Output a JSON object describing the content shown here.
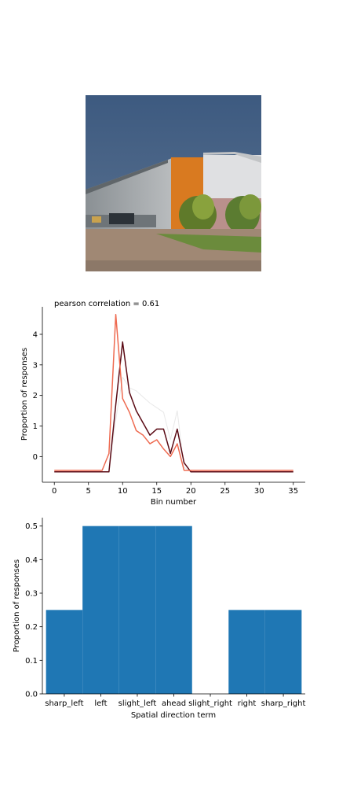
{
  "chart_data": [
    {
      "type": "line",
      "title": "pearson correlation = 0.61",
      "xlabel": "Bin number",
      "ylabel": "Proportion of responses",
      "xlim": [
        -1.75,
        36.75
      ],
      "ylim": [
        -0.84,
        4.9
      ],
      "xticks": [
        0,
        5,
        10,
        15,
        20,
        25,
        30,
        35
      ],
      "yticks": [
        0,
        1,
        2,
        3,
        4
      ],
      "x": [
        0,
        1,
        2,
        3,
        4,
        5,
        6,
        7,
        8,
        9,
        10,
        11,
        12,
        13,
        14,
        15,
        16,
        17,
        18,
        19,
        20,
        21,
        22,
        23,
        24,
        25,
        26,
        27,
        28,
        29,
        30,
        31,
        32,
        33,
        34,
        35
      ],
      "series": [
        {
          "color": "#ee6a50",
          "values": [
            -0.45,
            -0.45,
            -0.45,
            -0.45,
            -0.45,
            -0.45,
            -0.45,
            -0.45,
            0.1,
            4.65,
            1.9,
            1.45,
            0.85,
            0.7,
            0.42,
            0.55,
            0.25,
            0.0,
            0.42,
            -0.45,
            -0.45,
            -0.45,
            -0.45,
            -0.45,
            -0.45,
            -0.45,
            -0.45,
            -0.45,
            -0.45,
            -0.45,
            -0.45,
            -0.45,
            -0.45,
            -0.45,
            -0.45,
            -0.45
          ]
        },
        {
          "color": "#5a0a14",
          "values": [
            -0.5,
            -0.5,
            -0.5,
            -0.5,
            -0.5,
            -0.5,
            -0.5,
            -0.5,
            -0.5,
            1.7,
            3.75,
            2.1,
            1.5,
            1.1,
            0.7,
            0.9,
            0.9,
            0.1,
            0.9,
            -0.2,
            -0.5,
            -0.5,
            -0.5,
            -0.5,
            -0.5,
            -0.5,
            -0.5,
            -0.5,
            -0.5,
            -0.5,
            -0.5,
            -0.5,
            -0.5,
            -0.5,
            -0.5,
            -0.5
          ]
        },
        {
          "color": "#e8e8e8",
          "values": [
            -0.5,
            -0.5,
            -0.5,
            -0.5,
            -0.5,
            -0.5,
            -0.5,
            -0.5,
            -0.5,
            1.2,
            2.6,
            2.25,
            2.15,
            1.95,
            1.75,
            1.6,
            1.45,
            0.55,
            1.5,
            -0.35,
            -0.5,
            -0.5,
            -0.5,
            -0.5,
            -0.5,
            -0.5,
            -0.5,
            -0.5,
            -0.5,
            -0.5,
            -0.5,
            -0.5,
            -0.5,
            -0.5,
            -0.5,
            -0.5
          ]
        }
      ]
    },
    {
      "type": "bar",
      "xlabel": "Spatial direction term",
      "ylabel": "Proportion of responses",
      "ylim": [
        0,
        0.525
      ],
      "yticks": [
        "0.0",
        "0.1",
        "0.2",
        "0.3",
        "0.4",
        "0.5"
      ],
      "categories": [
        "sharp_left",
        "left",
        "slight_left",
        "ahead",
        "slight_right",
        "right",
        "sharp_right"
      ],
      "values": [
        0.25,
        0.5,
        0.5,
        0.5,
        0.0,
        0.25,
        0.25
      ],
      "color": "#1f77b4"
    }
  ]
}
